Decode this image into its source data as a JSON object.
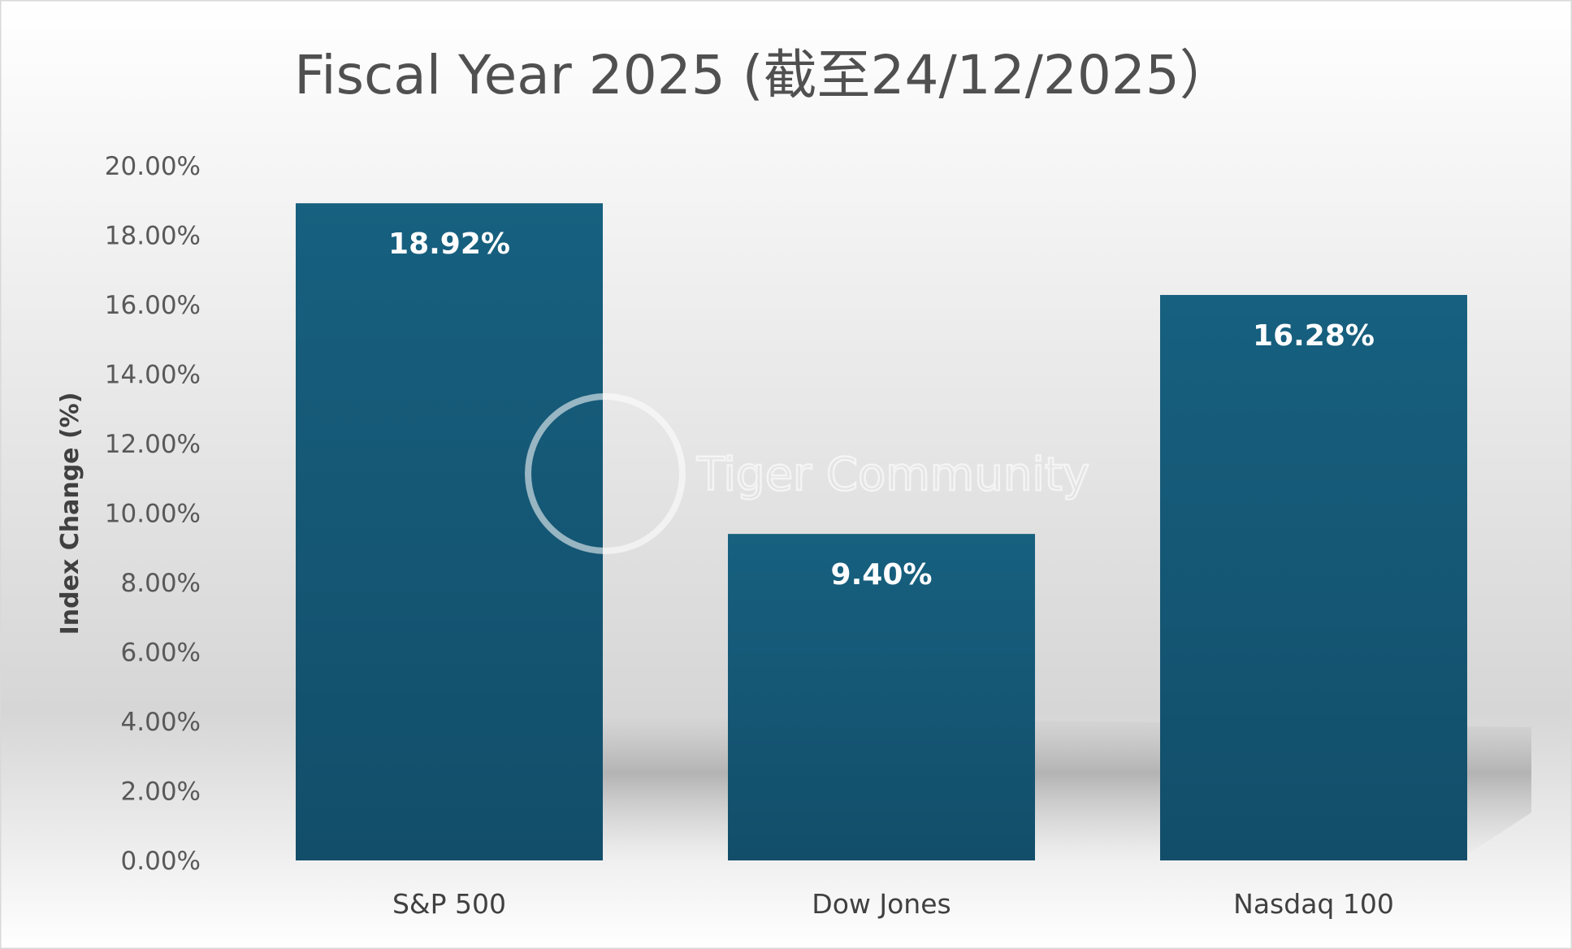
{
  "chart_data": {
    "type": "bar",
    "title": "Fiscal Year 2025 (截至24/12/2025）",
    "xlabel": "",
    "ylabel": "Index Change (%)",
    "categories": [
      "S&P 500",
      "Dow Jones",
      "Nasdaq 100"
    ],
    "values": [
      18.92,
      9.4,
      16.28
    ],
    "data_labels": [
      "18.92%",
      "9.40%",
      "16.28%"
    ],
    "ylim": [
      0,
      20
    ],
    "yticks": [
      "0.00%",
      "2.00%",
      "4.00%",
      "6.00%",
      "8.00%",
      "10.00%",
      "12.00%",
      "14.00%",
      "16.00%",
      "18.00%",
      "20.00%"
    ],
    "grid": false,
    "legend": "none",
    "bar_color_top": "#17607f",
    "bar_color_bottom": "#124e6a"
  },
  "watermark": "Tiger Community"
}
